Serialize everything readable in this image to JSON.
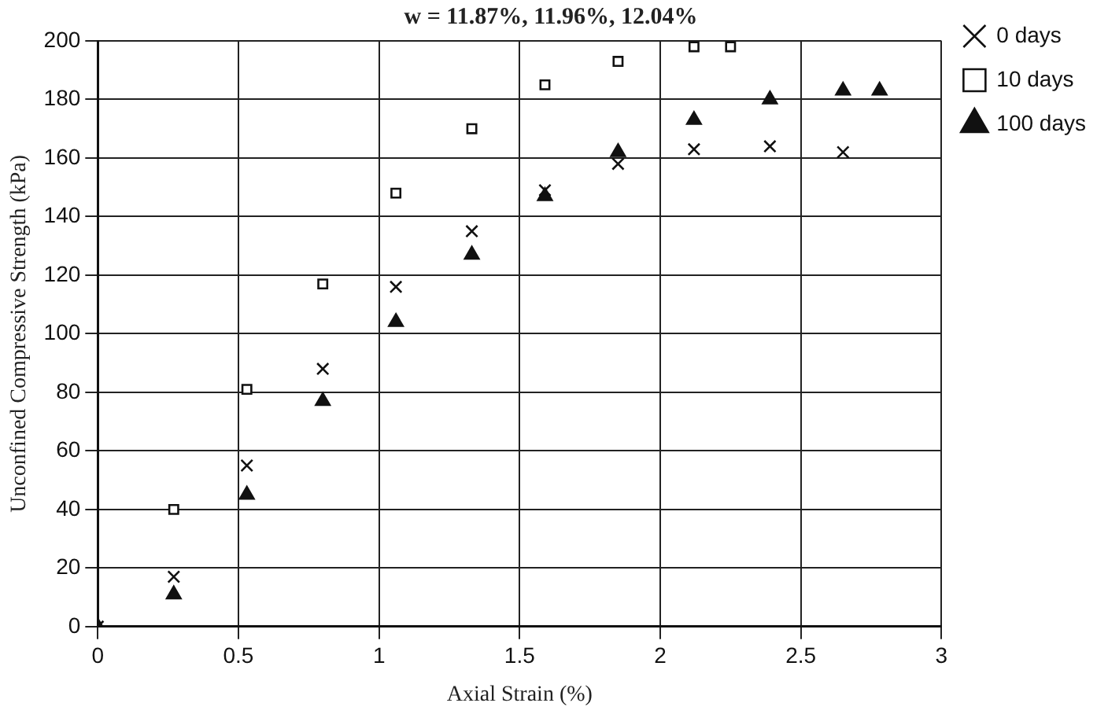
{
  "chart_data": {
    "type": "scatter",
    "title": "w = 11.87%, 11.96%, 12.04%",
    "xlabel": "Axial Strain (%)",
    "ylabel": "Unconfined Compressive Strength (kPa)",
    "series": [
      {
        "name": "0 days",
        "color": "#111111",
        "marker": "cross",
        "x": [
          0,
          0.27,
          0.53,
          0.8,
          1.06,
          1.33,
          1.59,
          1.85,
          2.12,
          2.39,
          2.65
        ],
        "values": [
          0,
          17,
          55,
          88,
          116,
          135,
          149,
          158,
          163,
          164,
          162
        ]
      },
      {
        "name": "10 days",
        "color": "#111111",
        "marker": "square",
        "x": [
          0.27,
          0.53,
          0.8,
          1.06,
          1.33,
          1.59,
          1.85,
          2.12,
          2.25
        ],
        "values": [
          40,
          81,
          117,
          148,
          170,
          185,
          193,
          198,
          198
        ]
      },
      {
        "name": "100 days",
        "color": "#111111",
        "marker": "triangle",
        "x": [
          0,
          0.27,
          0.53,
          0.8,
          1.06,
          1.33,
          1.59,
          1.85,
          2.12,
          2.39,
          2.65,
          2.78
        ],
        "values": [
          0,
          11,
          45,
          77,
          104,
          127,
          147,
          162,
          173,
          180,
          183,
          183
        ]
      }
    ],
    "xlim": [
      0,
      3
    ],
    "xticks": [
      0,
      0.5,
      1,
      1.5,
      2,
      2.5,
      3
    ],
    "ylim": [
      0,
      200
    ],
    "yticks": [
      0,
      20,
      40,
      60,
      80,
      100,
      120,
      140,
      160,
      180,
      200
    ],
    "grid": true,
    "legend": "top right"
  }
}
